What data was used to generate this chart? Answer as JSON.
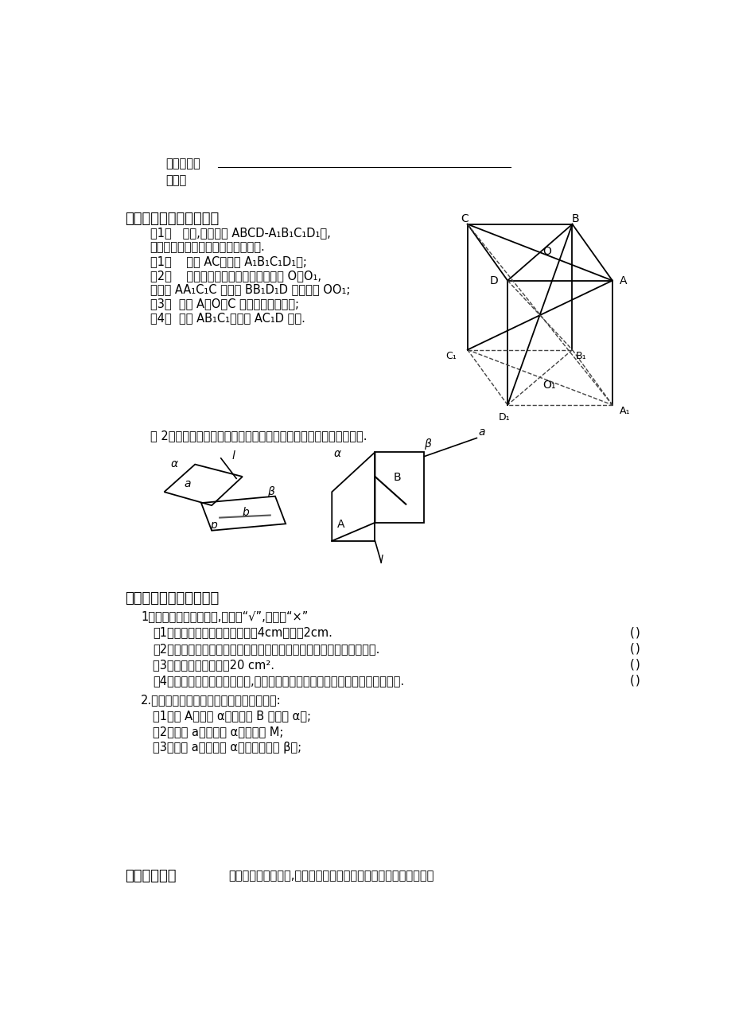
{
  "bg_color": "#ffffff",
  "text_color": "#000000",
  "section1_line1": "符号语言：",
  "section1_line2": "作用：",
  "section2_title": "三、知识迁移，拓展训练",
  "example1_lines": [
    "例1：   如图,在正方体 ABCD-A₁B₁C₁D₁中,",
    "判断下列命题是否准确，并说明理由.",
    "（1）    直线 AC在平面 A₁B₁C₁D₁内;",
    "（2）    设正方体上、下底面中心分别为 O、O₁,",
    "则平面 AA₁C₁C 与平面 BB₁D₁D 的交线为 OO₁;",
    "（3）  由点 A、O、C 能够确定一个平面;",
    "（4）  平面 AB₁C₁与平面 AC₁D 重合."
  ],
  "example2_text": "例 2：如图，用符号表示下列图形中点、直线、平面之间的位置关系.",
  "section3_title": "四、自学检测，深化提升",
  "judge_title": "1．判断下列命题的真假,真的打“√”,假的打“×”",
  "judge_items": [
    "（1）可画一个平面，使它的长为4cm，宽为2cm.",
    "（2）一条直线把它所在的平面分成两部分，一个平面把空间分成两部分.",
    "（3）一个平面的面积为20 cm².",
    "（4）经过面内任意两点的直线,若直线上各点都在这个面内，那么这个面是平面."
  ],
  "problem2_title": "2.用符号表示下列语句，并画出相对应图形:",
  "problem2_items": [
    "（1）点 A在平面 α内，但点 B 在平面 α外;",
    "（2）直线 a经过平面 α外的一点 M;",
    "（3）直线 a既在平面 α内，又在平面 β内;"
  ],
  "section4_title": "五、学习札记",
  "section4_subtitle": "（请同学们回想一下,本节课我们学了哪些内容、数学思想方法？）"
}
